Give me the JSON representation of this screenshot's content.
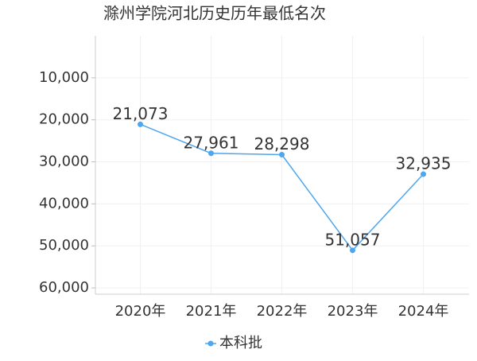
{
  "chart_data": {
    "type": "line",
    "title": "滁州学院河北历史历年最低名次",
    "categories": [
      "2020年",
      "2021年",
      "2022年",
      "2023年",
      "2024年"
    ],
    "series": [
      {
        "name": "本科批",
        "color": "#4da6f0",
        "values": [
          21073,
          27961,
          28298,
          51057,
          32935
        ],
        "value_labels": [
          "21,073",
          "27,961",
          "28,298",
          "51,057",
          "32,935"
        ]
      }
    ],
    "ylim": [
      0,
      61500
    ],
    "y_inverted": true,
    "yticks": [
      {
        "value": 10000,
        "label": "10,000"
      },
      {
        "value": 20000,
        "label": "20,000"
      },
      {
        "value": 30000,
        "label": "30,000"
      },
      {
        "value": 40000,
        "label": "40,000"
      },
      {
        "value": 50000,
        "label": "50,000"
      },
      {
        "value": 60000,
        "label": "60,000"
      }
    ],
    "grid": true
  }
}
